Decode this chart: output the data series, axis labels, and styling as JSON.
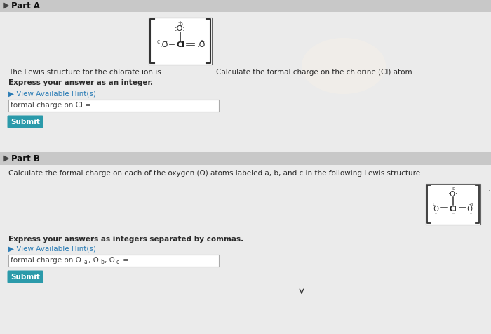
{
  "bg_color": "#dcdcdc",
  "header_bar_color": "#c8c8c8",
  "white": "#ffffff",
  "part_a_header": "Part A",
  "part_b_header": "Part B",
  "part_a_text1": "The Lewis structure for the chlorate ion is",
  "part_a_text2": "Calculate the formal charge on the chlorine (Cl) atom.",
  "part_a_text3": "Express your answer as an integer.",
  "part_a_hint": "▶ View Available Hint(s)",
  "part_a_label": "formal charge on Cl =",
  "part_b_text1": "Calculate the formal charge on each of the oxygen (O) atoms labeled a, b, and c in the following Lewis structure.",
  "part_b_text2": "Express your answers as integers separated by commas.",
  "part_b_hint": "▶ View Available Hint(s)",
  "part_b_label": "formal charge on O",
  "part_b_label2": ", O",
  "part_b_label3": ", O",
  "part_b_label4": " =",
  "submit_color": "#2b9aaa",
  "submit_text": "Submit",
  "text_color": "#2a2a2a",
  "hint_color": "#2b7cb5",
  "input_border": "#aaaaaa",
  "box_border": "#666666",
  "triangle_color": "#444444",
  "lewis_text_color": "#222222",
  "dot_color": "#888888",
  "glare_color": "#f5f0e8"
}
